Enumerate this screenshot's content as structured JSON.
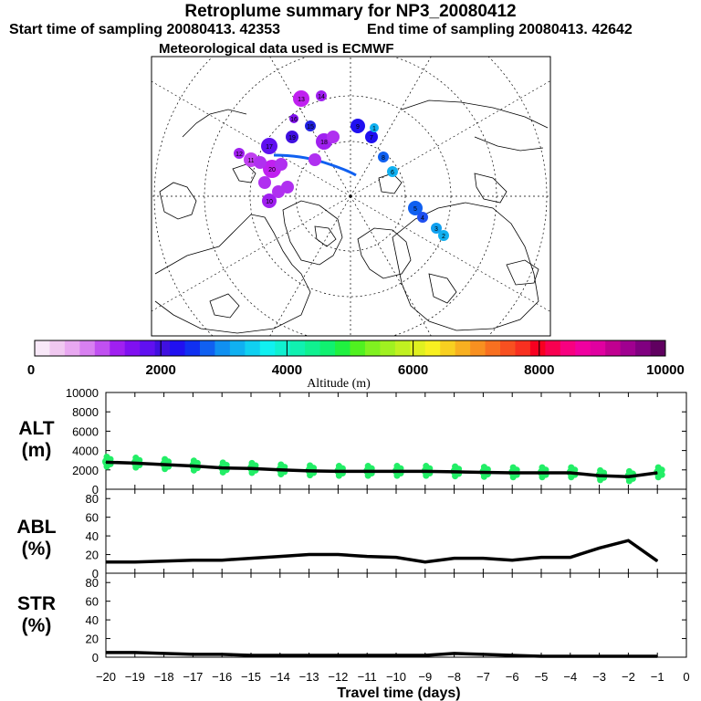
{
  "header": {
    "title": "Retroplume summary for NP3_20080412",
    "start": "Start time of sampling 20080413. 42353",
    "end": "End time of sampling 20080413. 42642",
    "met": "Meteorological data used is ECMWF"
  },
  "colorbar": {
    "ticks": [
      "0",
      "2000",
      "4000",
      "6000",
      "8000",
      "10000"
    ],
    "label": "Altitude (m)",
    "colors": [
      "#f8e8f8",
      "#f0c8f0",
      "#e8a8f0",
      "#d880f0",
      "#c050f0",
      "#a020f0",
      "#8010f0",
      "#6010f0",
      "#4010e0",
      "#2010f0",
      "#1030f0",
      "#1060f0",
      "#1090f0",
      "#10b0f0",
      "#10d0f0",
      "#10f0f0",
      "#10f0d0",
      "#10f0b0",
      "#10f090",
      "#10f070",
      "#20f040",
      "#50f020",
      "#80f020",
      "#a0f020",
      "#c0f020",
      "#e0f020",
      "#f8f020",
      "#f8d020",
      "#f8b020",
      "#f89020",
      "#f87020",
      "#f85020",
      "#f83020",
      "#f80020",
      "#f80050",
      "#f80080",
      "#f000a0",
      "#e000a0",
      "#c00090",
      "#a00090",
      "#800080",
      "#600060"
    ]
  },
  "map": {
    "markers": [
      "13",
      "14",
      "16",
      "15",
      "9",
      "17",
      "12",
      "11",
      "18",
      "19",
      "7",
      "8",
      "6",
      "5",
      "4",
      "3",
      "2",
      "1",
      "10",
      "20"
    ]
  },
  "chart_data": [
    {
      "type": "line",
      "panel": "ALT",
      "ylabel": "ALT (m)",
      "ylim": [
        0,
        10000
      ],
      "yticks": [
        "10000",
        "8000",
        "6000",
        "4000",
        "2000",
        "0"
      ],
      "x": [
        -20,
        -19,
        -18,
        -17,
        -16,
        -15,
        -14,
        -13,
        -12,
        -11,
        -10,
        -9,
        -8,
        -7,
        -6,
        -5,
        -4,
        -3,
        -2,
        -1
      ],
      "values": [
        2800,
        2700,
        2550,
        2400,
        2200,
        2150,
        2000,
        1900,
        1850,
        1850,
        1850,
        1850,
        1800,
        1750,
        1700,
        1700,
        1700,
        1400,
        1300,
        1700
      ],
      "scatter_color": "#22ee66"
    },
    {
      "type": "line",
      "panel": "ABL",
      "ylabel": "ABL (%)",
      "ylim": [
        0,
        90
      ],
      "yticks": [
        "80",
        "60",
        "40",
        "20",
        "0"
      ],
      "x": [
        -20,
        -19,
        -18,
        -17,
        -16,
        -15,
        -14,
        -13,
        -12,
        -11,
        -10,
        -9,
        -8,
        -7,
        -6,
        -5,
        -4,
        -3,
        -2,
        -1
      ],
      "values": [
        12,
        12,
        13,
        14,
        14,
        16,
        18,
        20,
        20,
        18,
        17,
        12,
        16,
        16,
        14,
        17,
        17,
        27,
        35,
        13
      ]
    },
    {
      "type": "line",
      "panel": "STR",
      "ylabel": "STR (%)",
      "ylim": [
        0,
        90
      ],
      "yticks": [
        "80",
        "60",
        "40",
        "20",
        "0"
      ],
      "x": [
        -20,
        -19,
        -18,
        -17,
        -16,
        -15,
        -14,
        -13,
        -12,
        -11,
        -10,
        -9,
        -8,
        -7,
        -6,
        -5,
        -4,
        -3,
        -2,
        -1
      ],
      "values": [
        5,
        5,
        4,
        3,
        3,
        2,
        2,
        2,
        2,
        2,
        2,
        2,
        4,
        3,
        2,
        1,
        1,
        1,
        1,
        1
      ],
      "xlabel": "Travel time (days)",
      "xticks": [
        "−20",
        "−19",
        "−18",
        "−17",
        "−16",
        "−15",
        "−14",
        "−13",
        "−12",
        "−11",
        "−10",
        "−9",
        "−8",
        "−7",
        "−6",
        "−5",
        "−4",
        "−3",
        "−2",
        "−1",
        "0"
      ]
    }
  ]
}
